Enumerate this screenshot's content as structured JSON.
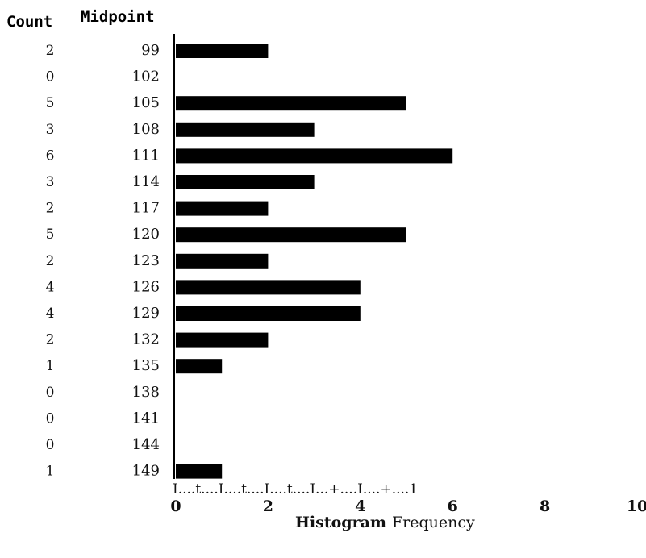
{
  "chart_data": {
    "type": "bar",
    "orientation": "horizontal",
    "headers": {
      "count": "Count",
      "midpoint": "Midpoint"
    },
    "midpoints": [
      "99",
      "102",
      "105",
      "108",
      "111",
      "114",
      "117",
      "120",
      "123",
      "126",
      "129",
      "132",
      "135",
      "138",
      "141",
      "144",
      "149"
    ],
    "counts": [
      2,
      0,
      5,
      3,
      6,
      3,
      2,
      5,
      2,
      4,
      4,
      2,
      1,
      0,
      0,
      0,
      1
    ],
    "xlim": [
      0,
      10
    ],
    "xticks": [
      0,
      2,
      4,
      6,
      8,
      10
    ],
    "ruler": "I....t....I....t....I....t....I...+....I....+....1",
    "xlabel_bold": "Histogram",
    "xlabel": "Frequency",
    "bar_color": "#000000"
  }
}
